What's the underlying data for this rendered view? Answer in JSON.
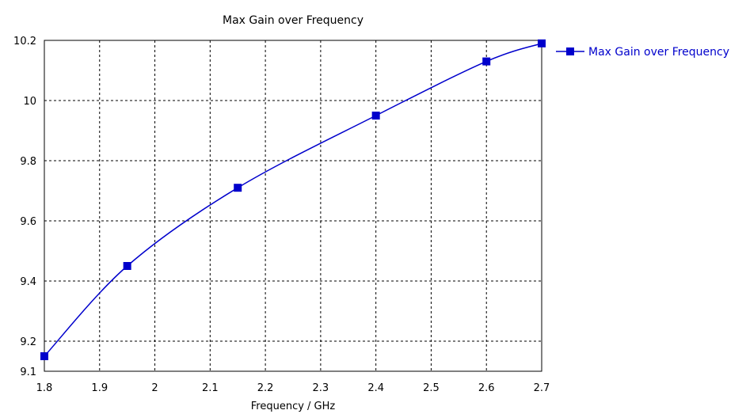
{
  "chart_data": {
    "type": "line",
    "title": "Max Gain over Frequency",
    "xlabel": "Frequency / GHz",
    "ylabel": "",
    "xlim": [
      1.8,
      2.7
    ],
    "ylim": [
      9.1,
      10.2
    ],
    "x_ticks": [
      "1.8",
      "1.9",
      "2",
      "2.1",
      "2.2",
      "2.3",
      "2.4",
      "2.5",
      "2.6",
      "2.7"
    ],
    "y_ticks": [
      "9.1",
      "9.2",
      "9.4",
      "9.6",
      "9.8",
      "10",
      "10.2"
    ],
    "grid": true,
    "legend_position": "right",
    "series": [
      {
        "name": "Max Gain over Frequency",
        "color": "#0000cc",
        "marker": "square",
        "x": [
          1.8,
          1.95,
          2.15,
          2.4,
          2.6,
          2.7
        ],
        "y": [
          9.15,
          9.45,
          9.71,
          9.95,
          10.13,
          10.19
        ]
      }
    ]
  }
}
